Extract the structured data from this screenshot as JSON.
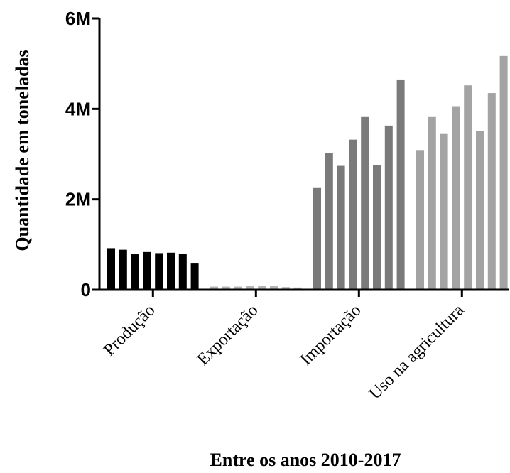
{
  "chart_data": {
    "type": "bar",
    "title": "",
    "xlabel": "Entre os anos 2010-2017",
    "ylabel": "Quantidade em toneladas",
    "ylim": [
      0,
      6000000
    ],
    "yticks": [
      {
        "value": 0,
        "label": "0"
      },
      {
        "value": 2000000,
        "label": "2M"
      },
      {
        "value": 4000000,
        "label": "4M"
      },
      {
        "value": 6000000,
        "label": "6M"
      }
    ],
    "grid": false,
    "groups": [
      {
        "name": "Produção",
        "color": "#000000",
        "values": [
          920000,
          885000,
          785000,
          835000,
          810000,
          820000,
          790000,
          580000
        ]
      },
      {
        "name": "Exportação",
        "color": "#b4b4b4",
        "values": [
          70000,
          70000,
          70000,
          80000,
          90000,
          80000,
          60000,
          50000
        ]
      },
      {
        "name": "Importação",
        "color": "#7a7a7a",
        "values": [
          2250000,
          3020000,
          2740000,
          3320000,
          3820000,
          2750000,
          3630000,
          4650000
        ]
      },
      {
        "name": "Uso na agricultura",
        "color": "#a3a3a3",
        "values": [
          3090000,
          3820000,
          3460000,
          4060000,
          4520000,
          3510000,
          4350000,
          5170000
        ]
      }
    ]
  }
}
